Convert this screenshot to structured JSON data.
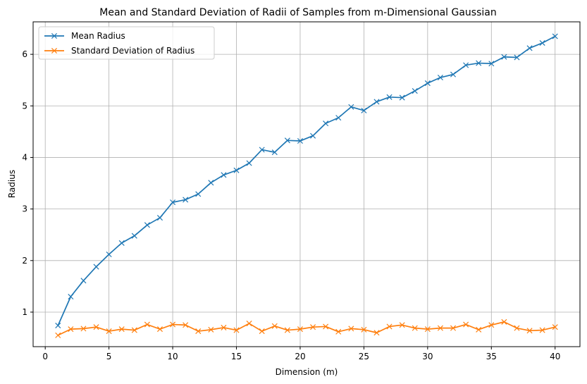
{
  "chart_data": {
    "type": "line",
    "title": "Mean and Standard Deviation of Radii of Samples from m-Dimensional Gaussian",
    "xlabel": "Dimension (m)",
    "ylabel": "Radius",
    "xlim": [
      -0.95,
      41.95
    ],
    "ylim": [
      0.33,
      6.63
    ],
    "xticks": [
      0,
      5,
      10,
      15,
      20,
      25,
      30,
      35,
      40
    ],
    "yticks": [
      1,
      2,
      3,
      4,
      5,
      6
    ],
    "grid": true,
    "legend_position": "top-left",
    "x": [
      1,
      2,
      3,
      4,
      5,
      6,
      7,
      8,
      9,
      10,
      11,
      12,
      13,
      14,
      15,
      16,
      17,
      18,
      19,
      20,
      21,
      22,
      23,
      24,
      25,
      26,
      27,
      28,
      29,
      30,
      31,
      32,
      33,
      34,
      35,
      36,
      37,
      38,
      39,
      40
    ],
    "series": [
      {
        "name": "Mean Radius",
        "color": "#1f77b4",
        "marker": "x",
        "values": [
          0.74,
          1.3,
          1.61,
          1.88,
          2.12,
          2.34,
          2.48,
          2.69,
          2.83,
          3.13,
          3.18,
          3.29,
          3.51,
          3.66,
          3.75,
          3.89,
          4.15,
          4.1,
          4.33,
          4.32,
          4.42,
          4.66,
          4.77,
          4.98,
          4.91,
          5.08,
          5.17,
          5.16,
          5.29,
          5.44,
          5.55,
          5.61,
          5.79,
          5.83,
          5.82,
          5.95,
          5.94,
          6.12,
          6.22,
          6.35
        ]
      },
      {
        "name": "Standard Deviation of Radius",
        "color": "#ff7f0e",
        "marker": "x",
        "values": [
          0.55,
          0.67,
          0.68,
          0.71,
          0.63,
          0.67,
          0.65,
          0.76,
          0.67,
          0.76,
          0.75,
          0.63,
          0.66,
          0.7,
          0.65,
          0.78,
          0.63,
          0.73,
          0.65,
          0.67,
          0.71,
          0.72,
          0.62,
          0.68,
          0.66,
          0.6,
          0.72,
          0.75,
          0.69,
          0.67,
          0.69,
          0.69,
          0.76,
          0.66,
          0.75,
          0.81,
          0.69,
          0.64,
          0.65,
          0.71
        ]
      }
    ]
  }
}
